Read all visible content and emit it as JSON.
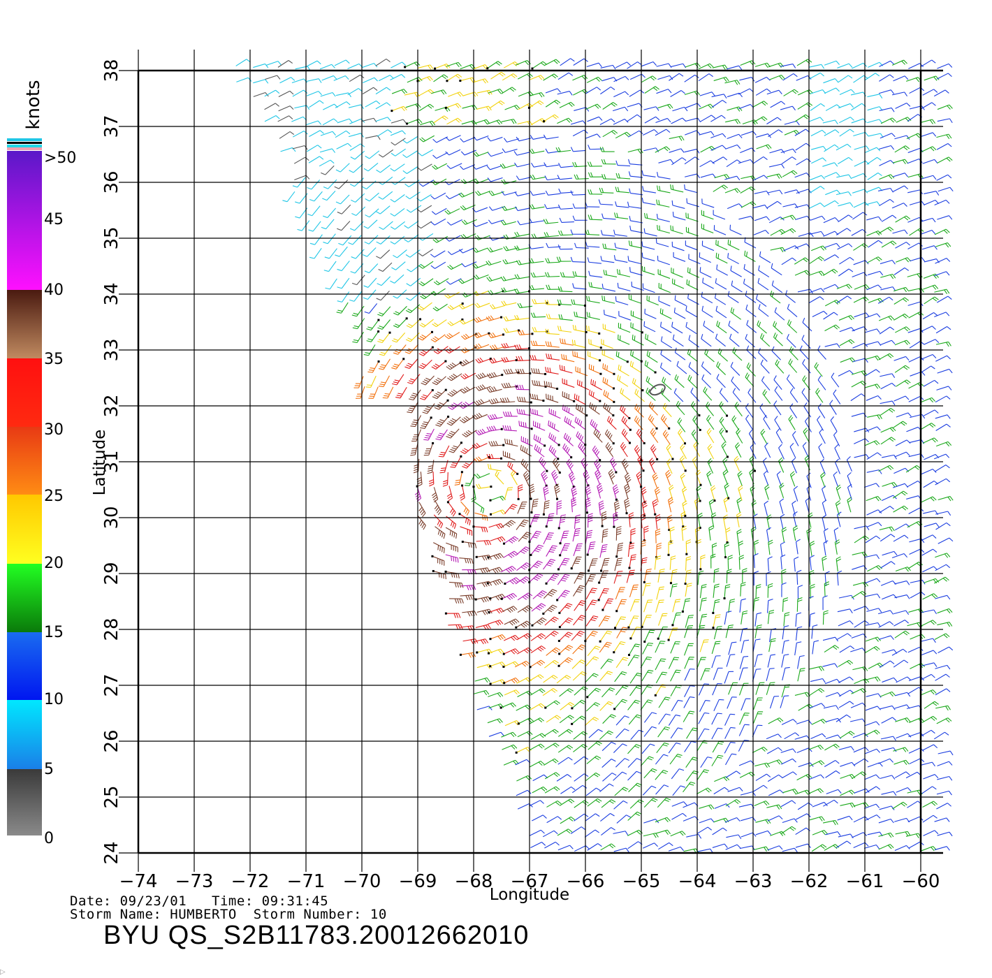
{
  "map": {
    "lon_range": [
      -74,
      -60
    ],
    "lat_range": [
      24,
      38
    ],
    "lon_ticks": [
      "-74",
      "-73",
      "-72",
      "-71",
      "-70",
      "-69",
      "-68",
      "-67",
      "-66",
      "-65",
      "-64",
      "-63",
      "-62",
      "-61",
      "-60"
    ],
    "lat_ticks": [
      "24",
      "25",
      "26",
      "27",
      "28",
      "29",
      "30",
      "31",
      "32",
      "33",
      "34",
      "35",
      "36",
      "37",
      "38"
    ],
    "x_label": "Longitude",
    "y_label": "Latitude",
    "storm_center": {
      "lon": -67.7,
      "lat": 30.5
    },
    "grid": true
  },
  "legend": {
    "title": "knots",
    "labels": [
      "0",
      "5",
      "10",
      "15",
      "20",
      "25",
      "30",
      "35",
      "40",
      "45",
      ">50"
    ]
  },
  "colors": {
    "speed_0_5": "#555555",
    "speed_5_10": "#1fc6e6",
    "speed_10_15": "#1a3de0",
    "speed_15_20": "#1aa81a",
    "speed_20_25": "#f2d20c",
    "speed_25_30": "#f2700c",
    "speed_30_35": "#e01a1a",
    "speed_35_40": "#7a3d2a",
    "speed_40_50": "#b41ab4"
  },
  "info": {
    "date_label": "Date:",
    "date": "09/23/01",
    "time_label": "Time:",
    "time": "09:31:45",
    "storm_name_label": "Storm Name:",
    "storm_name": "HUMBERTO",
    "storm_number_label": "Storm Number:",
    "storm_number": "10",
    "file_id": "BYU QS_S2B11783.20012662010"
  }
}
